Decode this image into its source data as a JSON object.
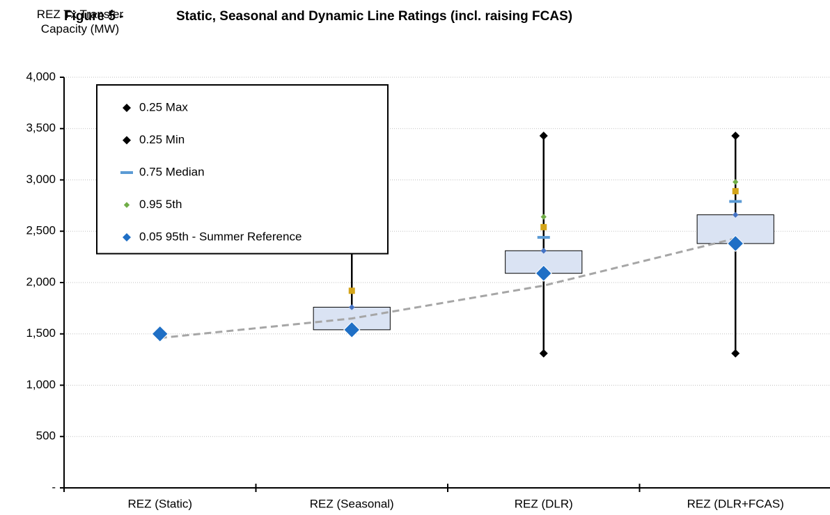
{
  "chart_data": {
    "type": "box",
    "figure_label": "Figure 5 -",
    "title": "Static, Seasonal and Dynamic Line Ratings (incl. raising FCAS)",
    "y_label": "REZ Tx Transfer Capacity (MW)",
    "categories": [
      "REZ (Static)",
      "REZ (Seasonal)",
      "REZ (DLR)",
      "REZ (DLR+FCAS)"
    ],
    "ylim": [
      0,
      4000
    ],
    "yticks": [
      {
        "value": 0,
        "label": "-"
      },
      500,
      {
        "value": 1000,
        "label": "1,000"
      },
      {
        "value": 1500,
        "label": "1,500"
      },
      {
        "value": 2000,
        "label": "2,000"
      },
      {
        "value": 2500,
        "label": "2,500"
      },
      {
        "value": 3000,
        "label": "3,000"
      },
      {
        "value": 3500,
        "label": "3,500"
      },
      {
        "value": 4000,
        "label": "4,000"
      }
    ],
    "grid": true,
    "legend": "upper left",
    "boxes": {
      "low": [
        1500,
        1540,
        2090,
        2380
      ],
      "high": [
        1500,
        1760,
        2310,
        2660
      ],
      "color": "#dae3f3"
    },
    "series": [
      {
        "name": "0.25 Max",
        "color": "#000000",
        "marker": "diamond",
        "values": [
          1500,
          2400,
          3430,
          3430
        ]
      },
      {
        "name": "0.25 Min",
        "color": "#000000",
        "marker": "diamond",
        "values": [
          1500,
          1540,
          1310,
          1310
        ]
      },
      {
        "name": "0.75 Median",
        "color": "#5b9bd5",
        "marker": "dash",
        "values": [
          null,
          null,
          2440,
          2790
        ]
      },
      {
        "name": "0.95 5th",
        "color": "#70ad47",
        "marker": "small-diamond",
        "values": [
          null,
          1920,
          2640,
          2980
        ]
      },
      {
        "color": "#d4a51a",
        "marker": "square",
        "values": [
          null,
          1920,
          2540,
          2890
        ]
      },
      {
        "color": "#4472c4",
        "marker": "small-diamond",
        "values": [
          null,
          1760,
          2310,
          2660
        ]
      },
      {
        "name": "0.05 95th - Summer Reference",
        "color": "#1f6fc5",
        "marker": "large-diamond",
        "values": [
          1500,
          1540,
          2090,
          2380
        ]
      },
      {
        "color": "#a6a6a6",
        "marker": "dashed-line",
        "values": [
          1460,
          1650,
          1970,
          2430
        ]
      }
    ]
  }
}
